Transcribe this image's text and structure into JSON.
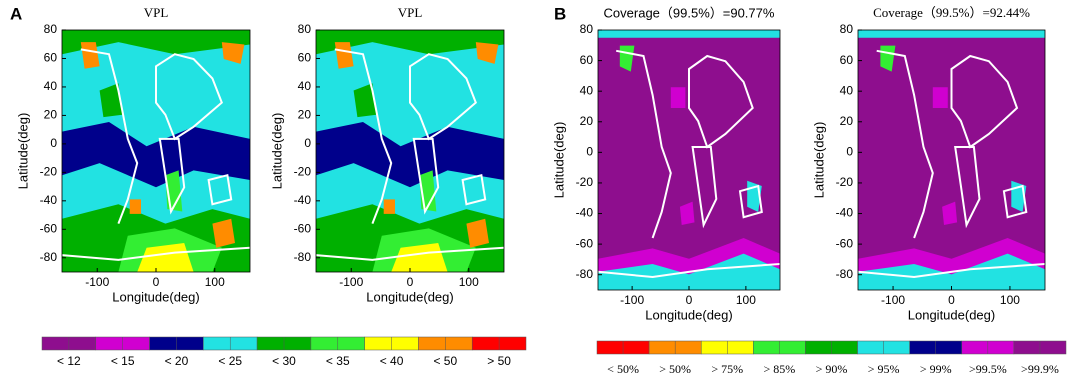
{
  "panel_labels": [
    "A",
    "B"
  ],
  "chart_data": [
    {
      "type": "contour",
      "title": "VPL",
      "xlabel": "Longitude(deg)",
      "ylabel": "Latitude(deg)",
      "xlim": [
        -160,
        160
      ],
      "ylim": [
        -90,
        80
      ],
      "xticks": [
        -100,
        0,
        100
      ],
      "yticks": [
        80,
        60,
        40,
        20,
        0,
        -20,
        -40,
        -60,
        -80
      ]
    },
    {
      "type": "contour",
      "title": "VPL",
      "xlabel": "Longitude(deg)",
      "ylabel": "Latitude(deg)",
      "xlim": [
        -160,
        160
      ],
      "ylim": [
        -90,
        80
      ],
      "xticks": [
        -100,
        0,
        100
      ],
      "yticks": [
        80,
        60,
        40,
        20,
        0,
        -20,
        -40,
        -60,
        -80
      ]
    },
    {
      "type": "contour",
      "title": "Coverage（99.5%）=90.77%",
      "xlabel": "Longitude(deg)",
      "ylabel": "Latitude(deg)",
      "xlim": [
        -160,
        160
      ],
      "ylim": [
        -90,
        80
      ],
      "xticks": [
        -100,
        0,
        100
      ],
      "yticks": [
        80,
        60,
        40,
        20,
        0,
        -20,
        -40,
        -60,
        -80
      ]
    },
    {
      "type": "contour",
      "title": "Coverage（99.5%）=92.44%",
      "xlabel": "Longitude(deg)",
      "ylabel": "Latitude(deg)",
      "xlim": [
        -160,
        160
      ],
      "ylim": [
        -90,
        80
      ],
      "xticks": [
        -100,
        0,
        100
      ],
      "yticks": [
        80,
        60,
        40,
        20,
        0,
        -20,
        -40,
        -60,
        -80
      ]
    }
  ],
  "colorbars": [
    {
      "labels": [
        "< 12",
        "< 15",
        "< 20",
        "< 25",
        "< 30",
        "< 35",
        "< 40",
        "< 50",
        "> 50"
      ],
      "colors": [
        "#8e0e8e",
        "#d000d0",
        "#00008b",
        "#22e2e2",
        "#00b000",
        "#33ee33",
        "#ffff00",
        "#ff8c00",
        "#ff0000"
      ]
    },
    {
      "labels": [
        "< 50%",
        "> 50%",
        "> 75%",
        "> 85%",
        "> 90%",
        "> 95%",
        "> 99%",
        ">99.5%",
        ">99.9%"
      ],
      "colors": [
        "#ff0000",
        "#ff8c00",
        "#ffff00",
        "#33ee33",
        "#00b000",
        "#22e2e2",
        "#00008b",
        "#d000d0",
        "#8e0e8e"
      ]
    }
  ]
}
